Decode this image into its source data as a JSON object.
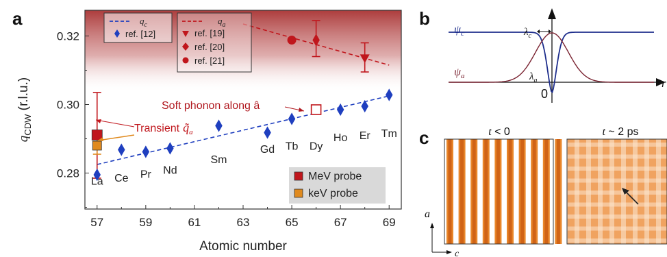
{
  "panels": {
    "a": "a",
    "b": "b",
    "c": "c"
  },
  "chart_data": {
    "type": "scatter",
    "xlabel": "Atomic number",
    "ylabel_main": "q",
    "ylabel_sub": "CDW",
    "ylabel_unit": " (r.l.u.)",
    "xlim": [
      56.5,
      69.5
    ],
    "ylim": [
      0.2695,
      0.3275
    ],
    "xticks": [
      57,
      59,
      61,
      63,
      65,
      67,
      69
    ],
    "yticks": [
      0.28,
      0.3,
      0.32
    ],
    "ytick_labels": [
      "0.28",
      "0.30",
      "0.32"
    ],
    "shade_from_y": 0.3035,
    "colors": {
      "blue": "#1f3fbf",
      "red": "#c0161c",
      "darkred": "#8b1a1a",
      "orange": "#e08a1e",
      "shade": "#a83232"
    },
    "legend_c": {
      "line_label": "q",
      "line_sub": "c",
      "marker_label": "ref. [12]"
    },
    "legend_a": {
      "line_label": "q",
      "line_sub": "a",
      "items": [
        "ref. [19]",
        "ref. [20]",
        "ref. [21]"
      ]
    },
    "legend_probe": [
      "MeV probe",
      "keV probe"
    ],
    "series": [
      {
        "name": "ref. [12]",
        "marker": "diamond",
        "color": "#1f3fbf",
        "points": [
          [
            57,
            0.2795
          ],
          [
            58,
            0.2868
          ],
          [
            59,
            0.2862
          ],
          [
            60,
            0.2872
          ],
          [
            62,
            0.2938
          ],
          [
            64,
            0.2918
          ],
          [
            65,
            0.2958
          ],
          [
            67,
            0.2985
          ],
          [
            68,
            0.2995
          ],
          [
            69,
            0.3028
          ]
        ]
      },
      {
        "name": "ref. [19]",
        "marker": "triangle-down",
        "color": "#c0161c",
        "points": [
          [
            68,
            0.3135
          ]
        ],
        "err": [
          [
            0.3095,
            0.318
          ]
        ]
      },
      {
        "name": "ref. [20]",
        "marker": "diamond",
        "color": "#c0161c",
        "points": [
          [
            66,
            0.3188
          ]
        ],
        "err": [
          [
            0.314,
            0.3245
          ]
        ]
      },
      {
        "name": "ref. [21]",
        "marker": "circle",
        "color": "#c0161c",
        "points": [
          [
            65,
            0.3188
          ]
        ]
      },
      {
        "name": "MeV probe",
        "marker": "square",
        "color": "#c0161c",
        "points": [
          [
            57,
            0.2905
          ]
        ],
        "err": [
          [
            0.2785,
            0.3035
          ]
        ]
      },
      {
        "name": "keV probe",
        "marker": "square",
        "color": "#e08a1e",
        "points": [
          [
            57,
            0.2888
          ]
        ],
        "err": [
          [
            0.2855,
            0.2912
          ]
        ]
      }
    ],
    "open_square": [
      66,
      0.2985
    ],
    "fit_c": {
      "x1": 57,
      "y1": 0.2825,
      "x2": 69,
      "y2": 0.3025
    },
    "fit_a": {
      "x1": 63,
      "y1": 0.3235,
      "x2": 69,
      "y2": 0.3115
    },
    "elements": [
      {
        "label": "La",
        "x": 57,
        "y": 0.2766
      },
      {
        "label": "Ce",
        "x": 58,
        "y": 0.2775
      },
      {
        "label": "Pr",
        "x": 59,
        "y": 0.2786
      },
      {
        "label": "Nd",
        "x": 60,
        "y": 0.2798
      },
      {
        "label": "Sm",
        "x": 62,
        "y": 0.2829
      },
      {
        "label": "Gd",
        "x": 64,
        "y": 0.2859
      },
      {
        "label": "Tb",
        "x": 65,
        "y": 0.2868
      },
      {
        "label": "Dy",
        "x": 66,
        "y": 0.2868
      },
      {
        "label": "Ho",
        "x": 67,
        "y": 0.2893
      },
      {
        "label": "Er",
        "x": 68,
        "y": 0.2899
      },
      {
        "label": "Tm",
        "x": 69,
        "y": 0.2905
      }
    ],
    "annotations": {
      "soft_phonon": "Soft phonon along â",
      "transient": "Transient",
      "transient_q": "q̃",
      "transient_sub": "a"
    }
  },
  "panel_b": {
    "psi_c": "ψ",
    "psi_c_sub": "c",
    "psi_a": "ψ",
    "psi_a_sub": "a",
    "lambda_c": "λ",
    "lambda_c_sub": "c",
    "lambda_a": "λ",
    "lambda_a_sub": "a",
    "zero": "0",
    "axis_end": "r"
  },
  "panel_c": {
    "left_title_var": "t",
    "left_title_rest": " < 0",
    "right_title_var": "t",
    "right_title_rest": " ~ 2 ps",
    "axis_a": "a",
    "axis_c": "c"
  }
}
